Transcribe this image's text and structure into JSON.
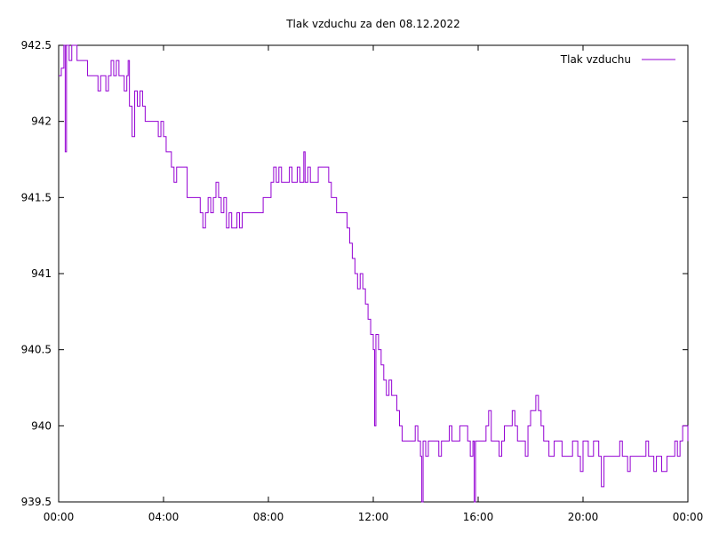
{
  "chart_data": {
    "type": "line",
    "title": "Tlak vzduchu za den 08.12.2022",
    "xlabel": "",
    "ylabel": "",
    "xlim": [
      0,
      24
    ],
    "ylim": [
      939.5,
      942.5
    ],
    "grid": false,
    "legend_position": "top-right",
    "x_ticks": [
      {
        "value": 0,
        "label": "00:00"
      },
      {
        "value": 4,
        "label": "04:00"
      },
      {
        "value": 8,
        "label": "08:00"
      },
      {
        "value": 12,
        "label": "12:00"
      },
      {
        "value": 16,
        "label": "16:00"
      },
      {
        "value": 20,
        "label": "20:00"
      },
      {
        "value": 24,
        "label": "00:00"
      }
    ],
    "y_ticks": [
      {
        "value": 939.5,
        "label": "939.5"
      },
      {
        "value": 940,
        "label": "940"
      },
      {
        "value": 940.5,
        "label": "940.5"
      },
      {
        "value": 941,
        "label": "941"
      },
      {
        "value": 941.5,
        "label": "941.5"
      },
      {
        "value": 942,
        "label": "942"
      },
      {
        "value": 942.5,
        "label": "942.5"
      }
    ],
    "series": [
      {
        "name": "Tlak vzduchu",
        "color": "#9400d3",
        "points": [
          [
            0.0,
            942.3
          ],
          [
            0.1,
            942.35
          ],
          [
            0.2,
            942.5
          ],
          [
            0.25,
            941.8
          ],
          [
            0.3,
            942.5
          ],
          [
            0.4,
            942.4
          ],
          [
            0.5,
            942.5
          ],
          [
            0.6,
            942.5
          ],
          [
            0.7,
            942.4
          ],
          [
            1.0,
            942.4
          ],
          [
            1.1,
            942.3
          ],
          [
            1.4,
            942.3
          ],
          [
            1.5,
            942.2
          ],
          [
            1.6,
            942.3
          ],
          [
            1.8,
            942.2
          ],
          [
            1.9,
            942.3
          ],
          [
            2.0,
            942.4
          ],
          [
            2.1,
            942.3
          ],
          [
            2.2,
            942.4
          ],
          [
            2.3,
            942.3
          ],
          [
            2.5,
            942.2
          ],
          [
            2.6,
            942.3
          ],
          [
            2.65,
            942.4
          ],
          [
            2.7,
            942.1
          ],
          [
            2.8,
            941.9
          ],
          [
            2.9,
            942.2
          ],
          [
            3.0,
            942.1
          ],
          [
            3.1,
            942.2
          ],
          [
            3.2,
            942.1
          ],
          [
            3.3,
            942.0
          ],
          [
            3.5,
            942.0
          ],
          [
            3.7,
            942.0
          ],
          [
            3.8,
            941.9
          ],
          [
            3.9,
            942.0
          ],
          [
            4.0,
            941.9
          ],
          [
            4.1,
            941.8
          ],
          [
            4.2,
            941.8
          ],
          [
            4.3,
            941.7
          ],
          [
            4.4,
            941.6
          ],
          [
            4.5,
            941.7
          ],
          [
            4.8,
            941.7
          ],
          [
            4.9,
            941.5
          ],
          [
            5.1,
            941.5
          ],
          [
            5.3,
            941.5
          ],
          [
            5.4,
            941.4
          ],
          [
            5.5,
            941.3
          ],
          [
            5.6,
            941.4
          ],
          [
            5.7,
            941.5
          ],
          [
            5.8,
            941.4
          ],
          [
            5.9,
            941.5
          ],
          [
            6.0,
            941.6
          ],
          [
            6.1,
            941.5
          ],
          [
            6.2,
            941.4
          ],
          [
            6.3,
            941.5
          ],
          [
            6.4,
            941.3
          ],
          [
            6.5,
            941.4
          ],
          [
            6.6,
            941.3
          ],
          [
            6.8,
            941.4
          ],
          [
            6.9,
            941.3
          ],
          [
            7.0,
            941.4
          ],
          [
            7.2,
            941.4
          ],
          [
            7.5,
            941.4
          ],
          [
            7.8,
            941.5
          ],
          [
            8.0,
            941.5
          ],
          [
            8.1,
            941.6
          ],
          [
            8.2,
            941.7
          ],
          [
            8.3,
            941.6
          ],
          [
            8.4,
            941.7
          ],
          [
            8.5,
            941.6
          ],
          [
            8.7,
            941.6
          ],
          [
            8.8,
            941.7
          ],
          [
            8.9,
            941.6
          ],
          [
            9.1,
            941.7
          ],
          [
            9.2,
            941.6
          ],
          [
            9.3,
            941.6
          ],
          [
            9.35,
            941.8
          ],
          [
            9.4,
            941.6
          ],
          [
            9.5,
            941.7
          ],
          [
            9.6,
            941.6
          ],
          [
            9.8,
            941.6
          ],
          [
            9.9,
            941.7
          ],
          [
            10.1,
            941.7
          ],
          [
            10.3,
            941.6
          ],
          [
            10.4,
            941.5
          ],
          [
            10.6,
            941.4
          ],
          [
            10.8,
            941.4
          ],
          [
            11.0,
            941.3
          ],
          [
            11.1,
            941.2
          ],
          [
            11.2,
            941.1
          ],
          [
            11.3,
            941.0
          ],
          [
            11.4,
            940.9
          ],
          [
            11.5,
            941.0
          ],
          [
            11.6,
            940.9
          ],
          [
            11.7,
            940.8
          ],
          [
            11.8,
            940.7
          ],
          [
            11.9,
            940.6
          ],
          [
            12.0,
            940.5
          ],
          [
            12.05,
            940.0
          ],
          [
            12.1,
            940.6
          ],
          [
            12.2,
            940.5
          ],
          [
            12.3,
            940.4
          ],
          [
            12.4,
            940.3
          ],
          [
            12.5,
            940.2
          ],
          [
            12.6,
            940.3
          ],
          [
            12.7,
            940.2
          ],
          [
            12.8,
            940.2
          ],
          [
            12.9,
            940.1
          ],
          [
            13.0,
            940.0
          ],
          [
            13.1,
            939.9
          ],
          [
            13.3,
            939.9
          ],
          [
            13.5,
            939.9
          ],
          [
            13.6,
            940.0
          ],
          [
            13.7,
            939.9
          ],
          [
            13.8,
            939.8
          ],
          [
            13.85,
            939.5
          ],
          [
            13.9,
            939.9
          ],
          [
            14.0,
            939.8
          ],
          [
            14.1,
            939.9
          ],
          [
            14.3,
            939.9
          ],
          [
            14.5,
            939.8
          ],
          [
            14.6,
            939.9
          ],
          [
            14.8,
            939.9
          ],
          [
            14.9,
            940.0
          ],
          [
            15.0,
            939.9
          ],
          [
            15.2,
            939.9
          ],
          [
            15.3,
            940.0
          ],
          [
            15.5,
            940.0
          ],
          [
            15.6,
            939.9
          ],
          [
            15.7,
            939.8
          ],
          [
            15.8,
            939.9
          ],
          [
            15.85,
            939.5
          ],
          [
            15.9,
            939.9
          ],
          [
            16.0,
            939.9
          ],
          [
            16.2,
            939.9
          ],
          [
            16.3,
            940.0
          ],
          [
            16.4,
            940.1
          ],
          [
            16.5,
            939.9
          ],
          [
            16.7,
            939.9
          ],
          [
            16.8,
            939.8
          ],
          [
            16.9,
            939.9
          ],
          [
            17.0,
            940.0
          ],
          [
            17.2,
            940.0
          ],
          [
            17.3,
            940.1
          ],
          [
            17.4,
            940.0
          ],
          [
            17.5,
            939.9
          ],
          [
            17.7,
            939.9
          ],
          [
            17.8,
            939.8
          ],
          [
            17.9,
            940.0
          ],
          [
            18.0,
            940.1
          ],
          [
            18.2,
            940.2
          ],
          [
            18.3,
            940.1
          ],
          [
            18.4,
            940.0
          ],
          [
            18.5,
            939.9
          ],
          [
            18.7,
            939.8
          ],
          [
            18.9,
            939.9
          ],
          [
            19.1,
            939.9
          ],
          [
            19.2,
            939.8
          ],
          [
            19.4,
            939.8
          ],
          [
            19.6,
            939.9
          ],
          [
            19.8,
            939.8
          ],
          [
            19.9,
            939.7
          ],
          [
            20.0,
            939.9
          ],
          [
            20.2,
            939.8
          ],
          [
            20.4,
            939.9
          ],
          [
            20.6,
            939.8
          ],
          [
            20.7,
            939.6
          ],
          [
            20.8,
            939.8
          ],
          [
            21.0,
            939.8
          ],
          [
            21.2,
            939.8
          ],
          [
            21.4,
            939.9
          ],
          [
            21.5,
            939.8
          ],
          [
            21.7,
            939.7
          ],
          [
            21.8,
            939.8
          ],
          [
            22.0,
            939.8
          ],
          [
            22.2,
            939.8
          ],
          [
            22.4,
            939.9
          ],
          [
            22.5,
            939.8
          ],
          [
            22.7,
            939.7
          ],
          [
            22.8,
            939.8
          ],
          [
            23.0,
            939.7
          ],
          [
            23.2,
            939.8
          ],
          [
            23.4,
            939.8
          ],
          [
            23.5,
            939.9
          ],
          [
            23.6,
            939.8
          ],
          [
            23.7,
            939.9
          ],
          [
            23.8,
            940.0
          ],
          [
            23.9,
            940.0
          ],
          [
            24.0,
            939.9
          ]
        ]
      }
    ]
  }
}
